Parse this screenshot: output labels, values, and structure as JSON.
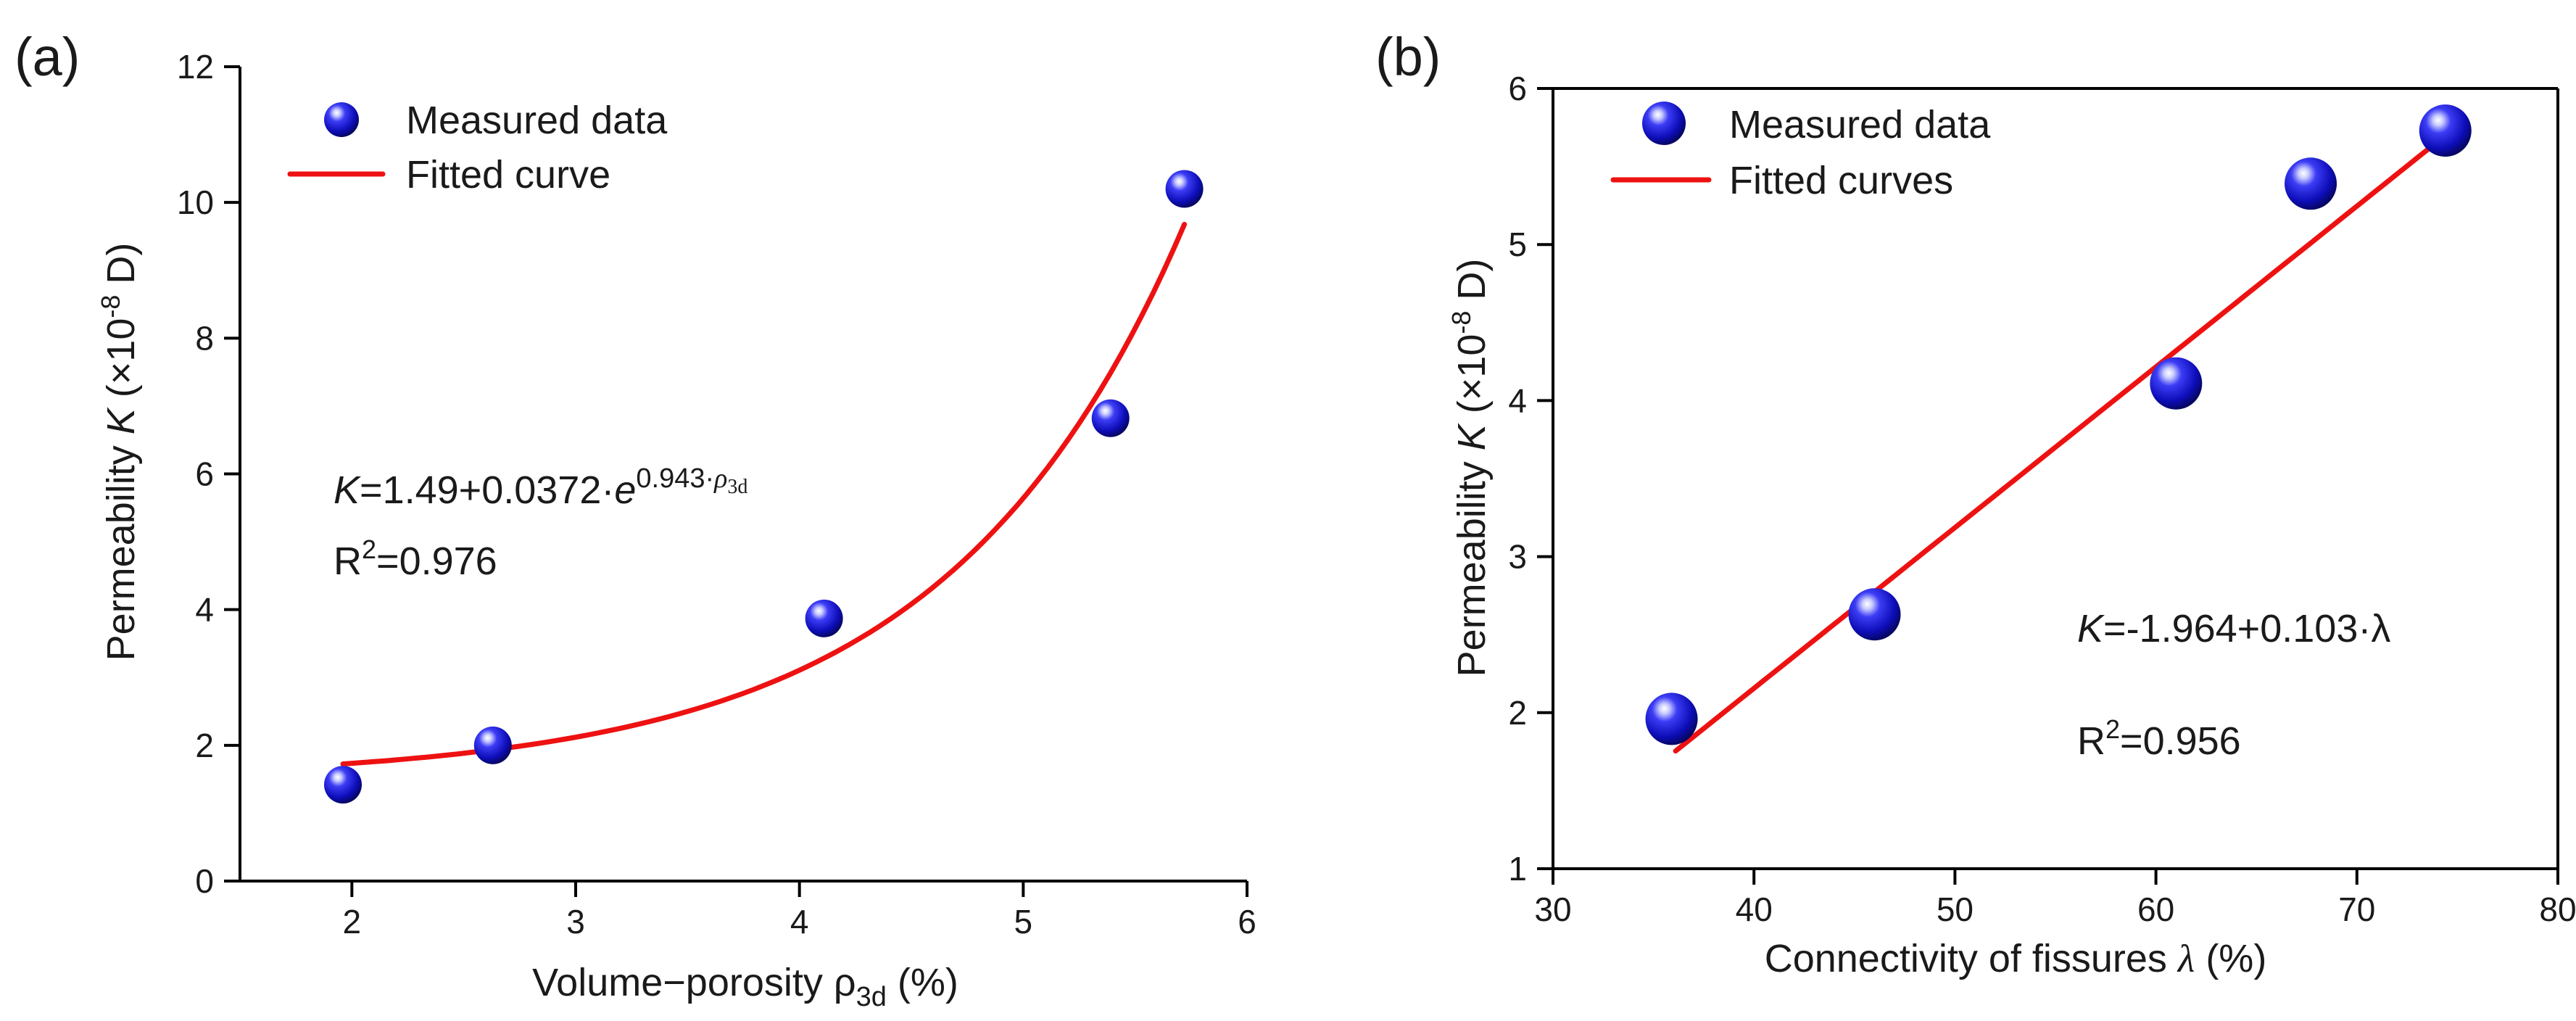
{
  "chart_data": [
    {
      "type": "scatter",
      "panel_label": "(a)",
      "xlabel": {
        "prefix": "Volume−porosity ",
        "symbol": "ρ",
        "sub": "3d",
        "suffix": " (%)"
      },
      "ylabel": {
        "prefix": "Permeability ",
        "symbol": "K",
        "suffix_pre": " (×10",
        "sup": "-8",
        "suffix_post": " D)"
      },
      "xlim": [
        1.5,
        6
      ],
      "ylim": [
        0,
        12
      ],
      "xticks": [
        2,
        3,
        4,
        5,
        6
      ],
      "yticks": [
        0,
        2,
        4,
        6,
        8,
        10,
        12
      ],
      "grid": false,
      "legend_position": "top-left",
      "legend": {
        "points": "Measured data",
        "line": "Fitted curve"
      },
      "series": [
        {
          "name": "Measured data",
          "kind": "points",
          "points": [
            {
              "x": 1.96,
              "y": 1.42
            },
            {
              "x": 2.63,
              "y": 2.0
            },
            {
              "x": 4.11,
              "y": 3.87
            },
            {
              "x": 5.39,
              "y": 6.82
            },
            {
              "x": 5.72,
              "y": 10.2
            }
          ]
        },
        {
          "name": "Fitted curve",
          "kind": "exp-fit",
          "a": 1.49,
          "b": 0.0372,
          "c": 0.943,
          "x_range": [
            1.96,
            5.72
          ]
        }
      ],
      "annotation": {
        "eq_k": "K",
        "eq_body": "=1.49+0.0372·",
        "eq_e": "e",
        "eq_exp": "0.943·",
        "eq_rho": "ρ",
        "eq_rho_sub": "3d",
        "r2_prefix": "R",
        "r2_sup": "2",
        "r2_value": "=0.976"
      }
    },
    {
      "type": "scatter",
      "panel_label": "(b)",
      "xlabel": {
        "prefix": "Connectivity of fissures ",
        "symbol": "λ",
        "suffix": " (%)"
      },
      "ylabel": {
        "prefix": "Permeability  ",
        "symbol": "K",
        "suffix_pre": " (×10",
        "sup": "-8",
        "suffix_post": " D)"
      },
      "xlim": [
        30,
        80
      ],
      "ylim": [
        1,
        6
      ],
      "xticks": [
        30,
        40,
        50,
        60,
        70,
        80
      ],
      "yticks": [
        1,
        2,
        3,
        4,
        5,
        6
      ],
      "grid": false,
      "legend_position": "top-left",
      "legend": {
        "points": "Measured data",
        "line": "Fitted curves"
      },
      "series": [
        {
          "name": "Measured data",
          "kind": "points",
          "points": [
            {
              "x": 35.9,
              "y": 1.96
            },
            {
              "x": 46.0,
              "y": 2.63
            },
            {
              "x": 61.0,
              "y": 4.11
            },
            {
              "x": 67.7,
              "y": 5.39
            },
            {
              "x": 74.4,
              "y": 5.73
            }
          ]
        },
        {
          "name": "Fitted curves",
          "kind": "linear-fit",
          "a": -1.964,
          "b": 0.103,
          "x_range": [
            36.1,
            74.5
          ]
        }
      ],
      "annotation": {
        "eq_k": "K",
        "eq_body": "=-1.964+0.103·λ",
        "r2_prefix": "R",
        "r2_sup": "2",
        "r2_value": "=0.956"
      }
    }
  ]
}
